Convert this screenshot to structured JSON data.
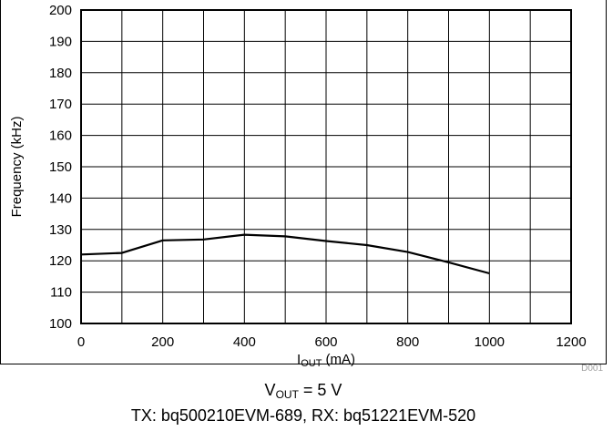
{
  "chart_data": {
    "type": "line",
    "xlabel_main": "I",
    "xlabel_sub": "OUT",
    "xlabel_unit": "(mA)",
    "ylabel": "Frequency (kHz)",
    "xlim": [
      0,
      1200
    ],
    "ylim": [
      100,
      200
    ],
    "xticks": [
      "0",
      "200",
      "400",
      "600",
      "800",
      "1000",
      "1200"
    ],
    "yticks": [
      "100",
      "110",
      "120",
      "130",
      "140",
      "150",
      "160",
      "170",
      "180",
      "190",
      "200"
    ],
    "x_grid_step": 100,
    "y_grid_step": 10,
    "grid": true,
    "series": [
      {
        "x": [
          0,
          100,
          200,
          300,
          400,
          500,
          600,
          700,
          800,
          900,
          1000
        ],
        "y": [
          122,
          122.5,
          126.5,
          126.8,
          128.3,
          127.8,
          126.3,
          125,
          122.8,
          119.5,
          116
        ],
        "color": "#000000"
      }
    ],
    "figure_id": "D001"
  },
  "captions": {
    "line1_main": "V",
    "line1_sub": "OUT",
    "line1_rest": " = 5 V",
    "line2": "TX: bq500210EVM-689, RX: bq51221EVM-520"
  }
}
